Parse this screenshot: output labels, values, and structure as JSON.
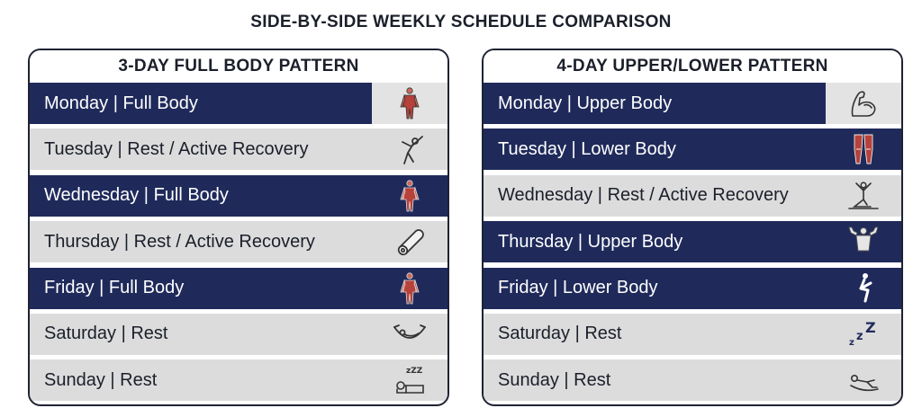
{
  "title": "SIDE-BY-SIDE WEEKLY SCHEDULE COMPARISON",
  "panels": [
    {
      "title": "3-DAY FULL BODY PATTERN",
      "rows": [
        {
          "label": "Monday | Full Body",
          "type": "train",
          "icon": "body-muscles-icon"
        },
        {
          "label": "Tuesday | Rest / Active Recovery",
          "type": "rest",
          "icon": "stretching-person-icon"
        },
        {
          "label": "Wednesday | Full Body",
          "type": "train",
          "icon": "body-muscles-icon"
        },
        {
          "label": "Thursday | Rest / Active Recovery",
          "type": "rest",
          "icon": "foam-roller-icon"
        },
        {
          "label": "Friday | Full Body",
          "type": "train",
          "icon": "body-muscles-icon"
        },
        {
          "label": "Saturday | Rest",
          "type": "rest",
          "icon": "hammock-icon"
        },
        {
          "label": "Sunday | Rest",
          "type": "rest",
          "icon": "sleeping-person-icon"
        }
      ]
    },
    {
      "title": "4-DAY UPPER/LOWER PATTERN",
      "rows": [
        {
          "label": "Monday | Upper Body",
          "type": "train",
          "icon": "flexed-bicep-icon"
        },
        {
          "label": "Tuesday | Lower Body",
          "type": "train",
          "icon": "leg-muscles-icon"
        },
        {
          "label": "Wednesday | Rest / Active Recovery",
          "type": "rest",
          "icon": "yoga-pose-icon"
        },
        {
          "label": "Thursday | Upper Body",
          "type": "train",
          "icon": "upper-torso-icon"
        },
        {
          "label": "Friday | Lower Body",
          "type": "train",
          "icon": "squat-icon"
        },
        {
          "label": "Saturday | Rest",
          "type": "rest",
          "icon": "sleep-zzz-icon"
        },
        {
          "label": "Sunday | Rest",
          "type": "rest",
          "icon": "reclining-person-icon"
        }
      ]
    }
  ],
  "colors": {
    "train": "#1f2a5b",
    "rest": "#dcdcdc",
    "muscle": "#b6423b"
  }
}
